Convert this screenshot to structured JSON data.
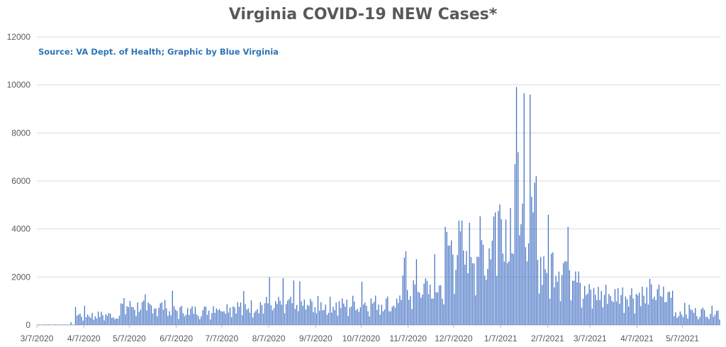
{
  "chart_data": {
    "type": "bar",
    "title": "Virginia COVID-19 NEW Cases*",
    "source_note": "Source: VA Dept. of Health; Graphic by Blue Virginia",
    "xlabel": "",
    "ylabel": "",
    "ylim": [
      0,
      12000
    ],
    "yticks": [
      0,
      2000,
      4000,
      6000,
      8000,
      10000,
      12000
    ],
    "ytick_labels": [
      "0",
      "2000",
      "4000",
      "6000",
      "8000",
      "10000",
      "12000"
    ],
    "xtick_labels": [
      "3/7/2020",
      "4/7/2020",
      "5/7/2020",
      "6/7/2020",
      "7/7/2020",
      "8/7/2020",
      "9/7/2020",
      "10/7/2020",
      "11/7/2020",
      "12/7/2020",
      "1/7/2021",
      "2/7/2021",
      "3/7/2021",
      "4/7/2021",
      "5/7/2021"
    ],
    "grid": true,
    "legend": "none",
    "bar_color": "#4472c4",
    "x_range": [
      "3/7/2020",
      "5/31/2021"
    ],
    "monthly_typical_values": [
      {
        "month": "3/2020",
        "typical": 20,
        "peak": 120
      },
      {
        "month": "4/2020",
        "typical": 450,
        "peak": 900
      },
      {
        "month": "5/2020",
        "typical": 850,
        "peak": 1300
      },
      {
        "month": "6/2020",
        "typical": 650,
        "peak": 1600
      },
      {
        "month": "7/2020",
        "typical": 850,
        "peak": 1500
      },
      {
        "month": "8/2020",
        "typical": 950,
        "peak": 2000
      },
      {
        "month": "9/2020",
        "typical": 900,
        "peak": 1300
      },
      {
        "month": "10/2020",
        "typical": 1000,
        "peak": 1800
      },
      {
        "month": "11/2020",
        "typical": 1700,
        "peak": 3200
      },
      {
        "month": "12/2020",
        "typical": 3500,
        "peak": 4700
      },
      {
        "month": "1/2021",
        "typical": 4800,
        "peak": 9900
      },
      {
        "month": "2/2021",
        "typical": 2800,
        "peak": 5000
      },
      {
        "month": "3/2021",
        "typical": 1400,
        "peak": 2000
      },
      {
        "month": "4/2021",
        "typical": 1400,
        "peak": 2000
      },
      {
        "month": "5/2021",
        "typical": 600,
        "peak": 1000
      }
    ],
    "notable_values": [
      {
        "date": "1/17/2021",
        "value": 9914
      },
      {
        "date": "1/18/2021",
        "value": 7200
      },
      {
        "date": "1/16/2021",
        "value": 6700
      },
      {
        "date": "1/30/2021",
        "value": 6200
      },
      {
        "date": "8/7/2020",
        "value": 2000
      },
      {
        "date": "10/7/2020",
        "value": 1800
      }
    ]
  }
}
